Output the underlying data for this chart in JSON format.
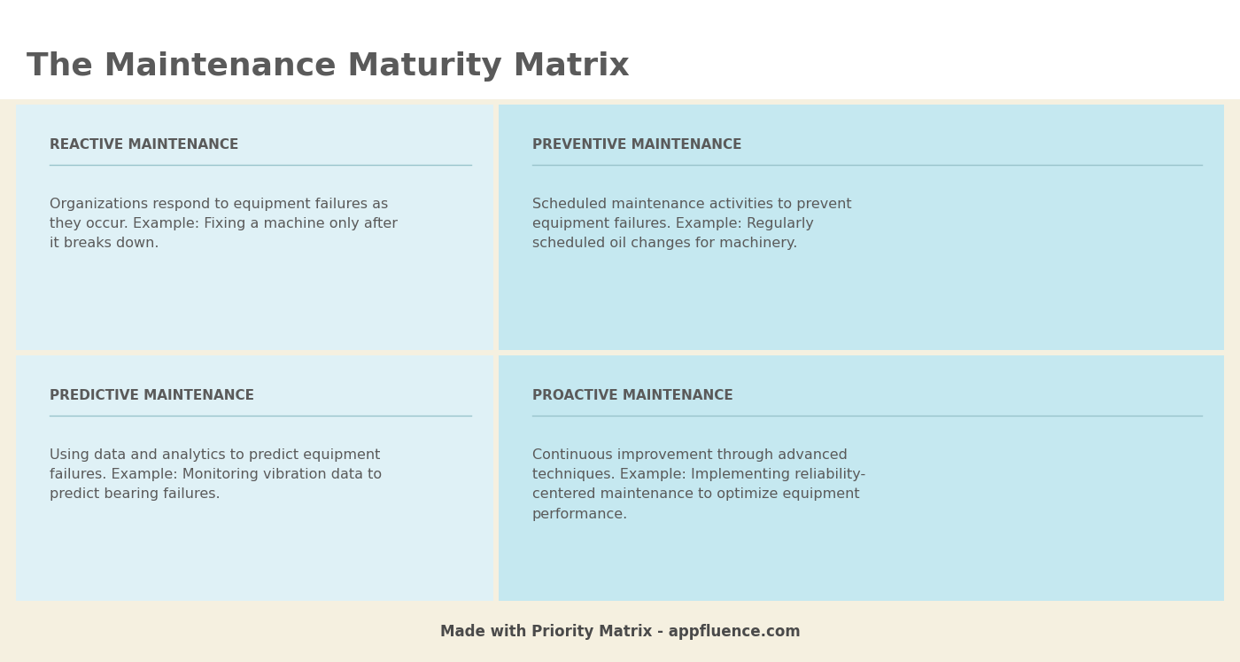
{
  "title": "The Maintenance Maturity Matrix",
  "title_color": "#5a5a5a",
  "title_fontsize": 26,
  "title_fontweight": "bold",
  "white_bg": "#ffffff",
  "background_color": "#f5f0e0",
  "divider_color": "#99c4cc",
  "text_color": "#5a5a5a",
  "footer_text": "Made with Priority Matrix - appfluence.com",
  "footer_color": "#4a4a4a",
  "quadrants": [
    {
      "title": "REACTIVE MAINTENANCE",
      "body": "Organizations respond to equipment failures as\nthey occur. Example: Fixing a machine only after\nit breaks down.",
      "row": 0,
      "col": 0,
      "bg": "#dff1f6"
    },
    {
      "title": "PREVENTIVE MAINTENANCE",
      "body": "Scheduled maintenance activities to prevent\nequipment failures. Example: Regularly\nscheduled oil changes for machinery.",
      "row": 0,
      "col": 1,
      "bg": "#c5e8f0"
    },
    {
      "title": "PREDICTIVE MAINTENANCE",
      "body": "Using data and analytics to predict equipment\nfailures. Example: Monitoring vibration data to\npredict bearing failures.",
      "row": 1,
      "col": 0,
      "bg": "#dff1f6"
    },
    {
      "title": "PROACTIVE MAINTENANCE",
      "body": "Continuous improvement through advanced\ntechniques. Example: Implementing reliability-\ncentered maintenance to optimize equipment\nperformance.",
      "row": 1,
      "col": 1,
      "bg": "#c5e8f0"
    }
  ]
}
